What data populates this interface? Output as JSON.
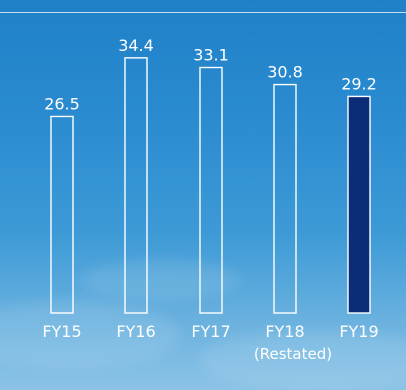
{
  "chart_data": {
    "type": "bar",
    "categories": [
      "FY15",
      "FY16",
      "FY17",
      "FY18",
      "FY19"
    ],
    "category_sublabels": [
      "",
      "",
      "",
      "(Restated)",
      ""
    ],
    "values": [
      26.5,
      34.4,
      33.1,
      30.8,
      29.2
    ],
    "value_labels": [
      "26.5",
      "34.4",
      "33.1",
      "30.8",
      "29.2"
    ],
    "highlight_index": 4,
    "ylim": [
      0,
      36
    ],
    "grid": false,
    "colors": {
      "bar_outline": "#ffffff",
      "highlight_fill": "#0b2d78",
      "text": "#ffffff"
    }
  }
}
